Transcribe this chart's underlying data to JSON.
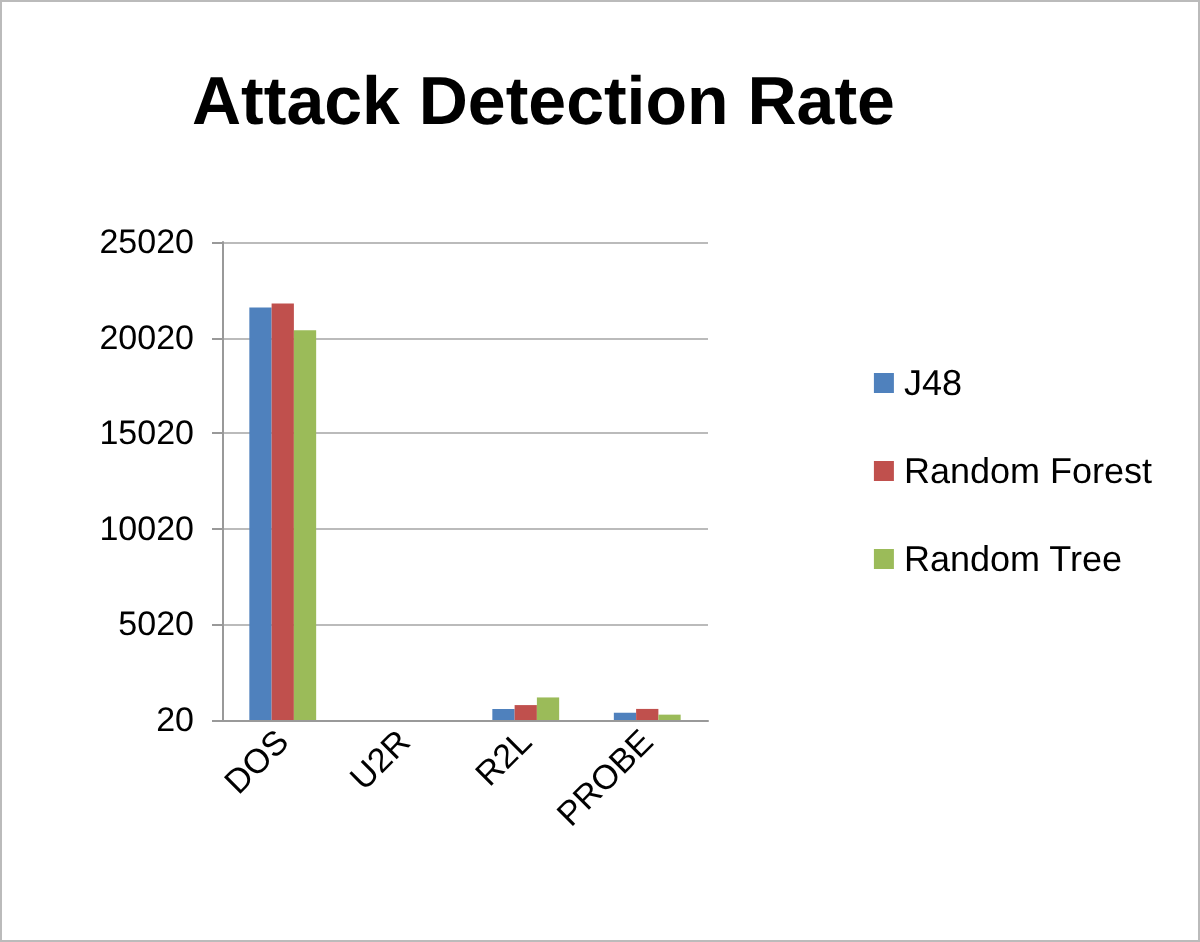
{
  "chart_data": {
    "type": "bar",
    "title": "Attack Detection Rate",
    "categories": [
      "DOS",
      "U2R",
      "R2L",
      "PROBE"
    ],
    "series": [
      {
        "name": "J48",
        "color": "#4f81bd",
        "values": [
          21600,
          20,
          600,
          400
        ]
      },
      {
        "name": "Random Forest",
        "color": "#c0504d",
        "values": [
          21800,
          20,
          800,
          600
        ]
      },
      {
        "name": "Random Tree",
        "color": "#9bbb59",
        "values": [
          20400,
          20,
          1200,
          300
        ]
      }
    ],
    "ylim": [
      20,
      25020
    ],
    "yticks": [
      20,
      5020,
      10020,
      15020,
      20020,
      25020
    ],
    "grid": "y",
    "legend": "right"
  }
}
